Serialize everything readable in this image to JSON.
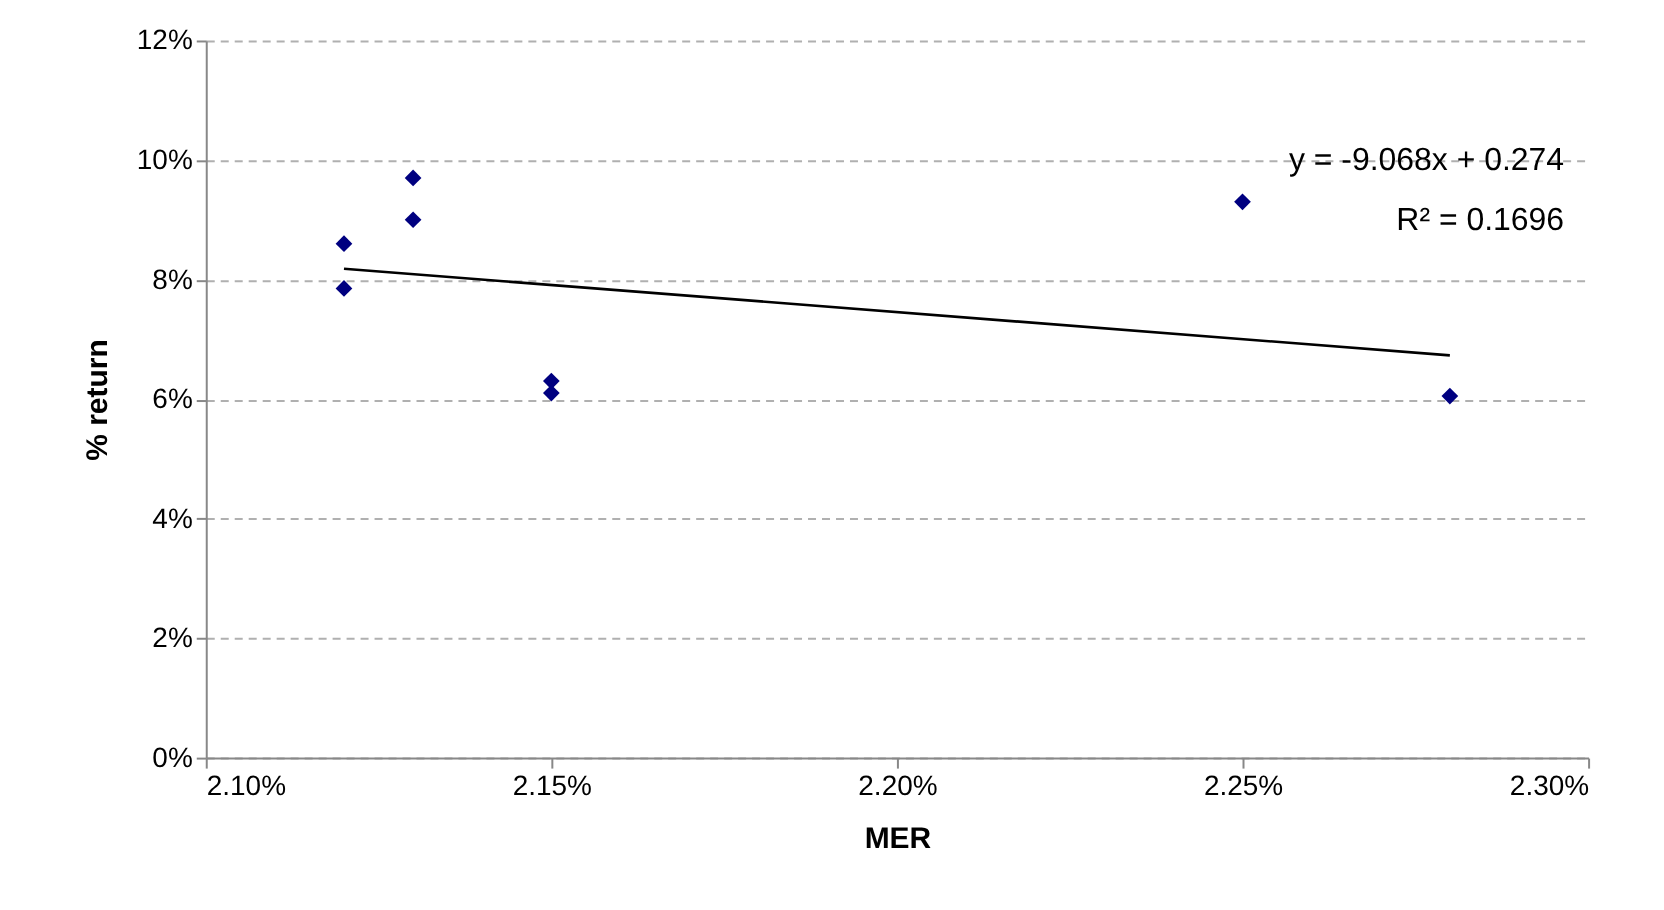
{
  "chart_data": {
    "type": "scatter",
    "xlabel": "MER",
    "ylabel": "% return",
    "series": [
      {
        "color": "#000080",
        "marker": "diamond",
        "x": [
          2.12,
          2.12,
          2.13,
          2.13,
          2.15,
          2.15,
          2.25,
          2.28
        ],
        "values": [
          8.6,
          7.85,
          9.7,
          9.0,
          6.3,
          6.1,
          9.3,
          6.05
        ]
      },
      {
        "type": "line",
        "color": "#000000",
        "marker": "none",
        "line_style": "solid",
        "x": [
          2.12,
          2.28
        ],
        "values": [
          8.18,
          6.73
        ]
      }
    ],
    "annotations": [
      "y = -9.068x + 0.274",
      "R² = 0.1696"
    ],
    "xlim": [
      2.1,
      2.3
    ],
    "xticks": [
      {
        "value": 2.1,
        "label": "2.10%"
      },
      {
        "value": 2.15,
        "label": "2.15%"
      },
      {
        "value": 2.2,
        "label": "2.20%"
      },
      {
        "value": 2.25,
        "label": "2.25%"
      },
      {
        "value": 2.3,
        "label": "2.30%"
      }
    ],
    "ylim": [
      0,
      12
    ],
    "yticks": [
      {
        "value": 0,
        "label": "0%"
      },
      {
        "value": 2,
        "label": "2%"
      },
      {
        "value": 4,
        "label": "4%"
      },
      {
        "value": 6,
        "label": "6%"
      },
      {
        "value": 8,
        "label": "8%"
      },
      {
        "value": 10,
        "label": "10%"
      },
      {
        "value": 12,
        "label": "12%"
      }
    ],
    "grid": "y"
  }
}
